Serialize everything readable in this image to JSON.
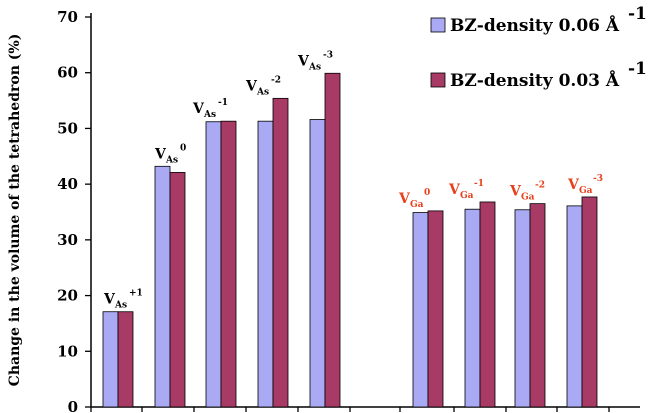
{
  "chart_data": {
    "type": "bar",
    "ylabel": "Change in the volume of the tetrahedron (%)",
    "ylim": [
      0,
      70
    ],
    "yticks": [
      0,
      10,
      20,
      30,
      40,
      50,
      60,
      70
    ],
    "grid": false,
    "legend_position": "top-right",
    "categories": [
      {
        "main": "V",
        "sub": "As",
        "sup": "+1",
        "color": "#000000"
      },
      {
        "main": "V",
        "sub": "As",
        "sup": "0",
        "color": "#000000"
      },
      {
        "main": "V",
        "sub": "As",
        "sup": "-1",
        "color": "#000000"
      },
      {
        "main": "V",
        "sub": "As",
        "sup": "-2",
        "color": "#000000"
      },
      {
        "main": "V",
        "sub": "As",
        "sup": "-3",
        "color": "#000000"
      },
      {
        "main": "V",
        "sub": "Ga",
        "sup": "0",
        "color": "#e8401c"
      },
      {
        "main": "V",
        "sub": "Ga",
        "sup": "-1",
        "color": "#e8401c"
      },
      {
        "main": "V",
        "sub": "Ga",
        "sup": "-2",
        "color": "#e8401c"
      },
      {
        "main": "V",
        "sub": "Ga",
        "sup": "-3",
        "color": "#e8401c"
      }
    ],
    "series": [
      {
        "name": "BZ-density 0.06 Å",
        "name_sup": "-1",
        "color": "#a9a9f4",
        "values": [
          17.1,
          43.2,
          51.2,
          51.3,
          51.6,
          34.9,
          35.5,
          35.4,
          36.1
        ]
      },
      {
        "name": "BZ-density 0.03 Å",
        "name_sup": "-1",
        "color": "#a83a66",
        "values": [
          17.1,
          42.1,
          51.3,
          55.4,
          59.9,
          35.2,
          36.8,
          36.5,
          37.7
        ]
      }
    ]
  }
}
